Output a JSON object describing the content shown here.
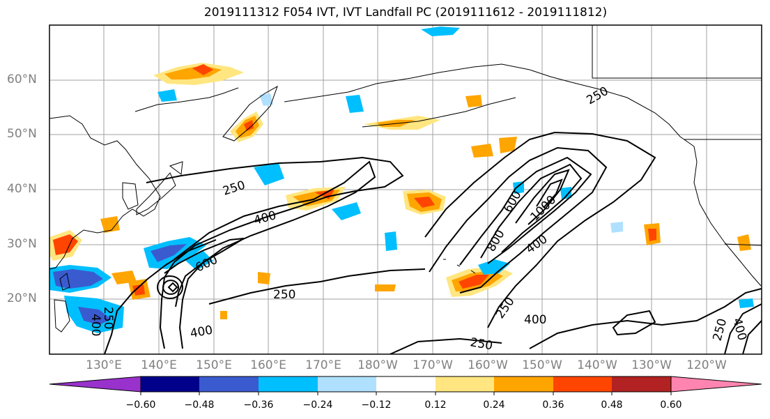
{
  "title": "2019111312 F054 IVT, IVT Landfall PC (2019111612 - 2019111812)",
  "latitude_labels": [
    "60°N",
    "50°N",
    "40°N",
    "30°N",
    "20°N"
  ],
  "longitude_labels": [
    "130°E",
    "140°E",
    "150°E",
    "160°E",
    "170°E",
    "180°W",
    "170°W",
    "160°W",
    "150°W",
    "140°W",
    "130°W",
    "120°W"
  ],
  "contour_labels": [
    "250",
    "250",
    "400",
    "600",
    "250",
    "400",
    "250",
    "400",
    "600",
    "1000",
    "800",
    "400",
    "250",
    "400",
    "250",
    "250",
    "400"
  ],
  "colorbar": {
    "tick_labels": [
      "−0.60",
      "−0.48",
      "−0.36",
      "−0.24",
      "−0.12",
      "0.12",
      "0.24",
      "0.36",
      "0.48",
      "0.60"
    ],
    "colors": [
      "#9932cc",
      "#00008b",
      "#3a5bcf",
      "#00bfff",
      "#b0e0ff",
      "#ffffff",
      "#ffe680",
      "#ffa500",
      "#ff4500",
      "#b22222",
      "#ff85b0"
    ]
  },
  "map_style": {
    "frame_color": "#000000",
    "gridline_color": "#a0a0a0",
    "coastline_color": "#000000",
    "ivt_contour_color": "#000000"
  }
}
